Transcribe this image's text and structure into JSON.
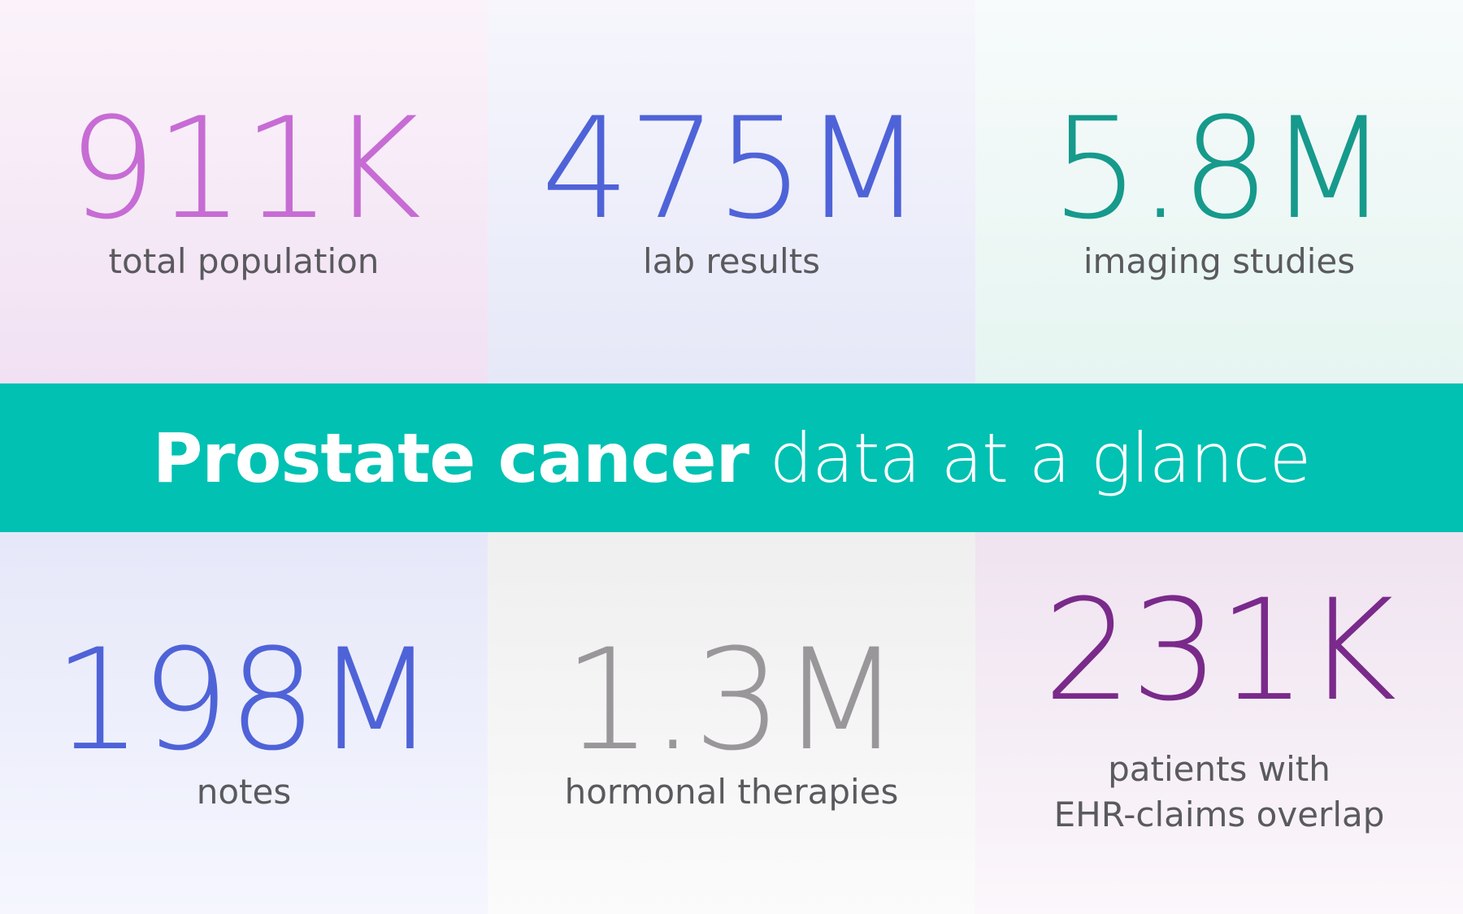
{
  "title": {
    "bold": "Prostate cancer",
    "light": "data at a glance"
  },
  "stats": [
    {
      "value": "911K",
      "label": "total population",
      "color": "#c66cd4"
    },
    {
      "value": "475M",
      "label": "lab results",
      "color": "#4f63d8"
    },
    {
      "value": "5.8M",
      "label": "imaging studies",
      "color": "#169a8c"
    },
    {
      "value": "198M",
      "label": "notes",
      "color": "#4f63d8"
    },
    {
      "value": "1.3M",
      "label": "hormonal therapies",
      "color": "#9a979b"
    },
    {
      "value": "231K",
      "label": "patients with\nEHR-claims overlap",
      "color": "#7a2a8a"
    }
  ],
  "banner_color": "#00c1b2"
}
